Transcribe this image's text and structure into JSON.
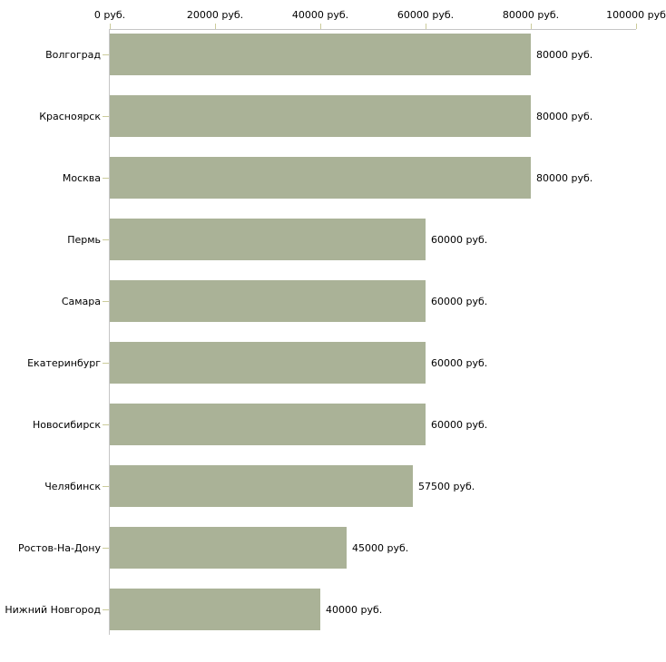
{
  "chart_data": {
    "type": "bar",
    "orientation": "horizontal",
    "title": "",
    "xlabel": "",
    "ylabel": "",
    "xlim": [
      0,
      100000
    ],
    "grid": false,
    "legend": false,
    "categories": [
      "Волгоград",
      "Красноярск",
      "Москва",
      "Пермь",
      "Самара",
      "Екатеринбург",
      "Новосибирск",
      "Челябинск",
      "Ростов-На-Дону",
      "Нижний Новгород"
    ],
    "values": [
      80000,
      80000,
      80000,
      60000,
      60000,
      60000,
      60000,
      57500,
      45000,
      40000
    ],
    "value_labels": [
      "80000 руб.",
      "80000 руб.",
      "80000 руб.",
      "60000 руб.",
      "60000 руб.",
      "60000 руб.",
      "60000 руб.",
      "57500 руб.",
      "45000 руб.",
      "40000 руб."
    ],
    "x_ticks": [
      {
        "value": 0,
        "label": "0 руб."
      },
      {
        "value": 20000,
        "label": "20000 руб."
      },
      {
        "value": 40000,
        "label": "40000 руб."
      },
      {
        "value": 60000,
        "label": "60000 руб."
      },
      {
        "value": 80000,
        "label": "80000 руб."
      },
      {
        "value": 100000,
        "label": "100000 руб"
      }
    ],
    "colors": {
      "bar": "#aab297",
      "axis_line": "#c6c6c6",
      "axis_tick": "#cbcb9a",
      "category_tick": "#cbcb9a",
      "text": "#000000",
      "background": "#ffffff"
    }
  }
}
